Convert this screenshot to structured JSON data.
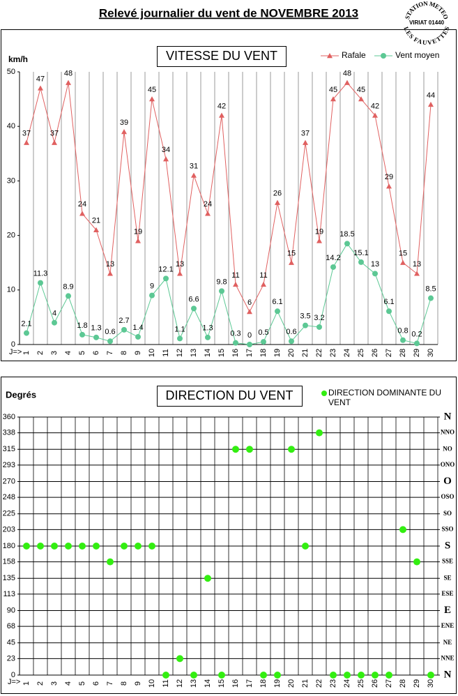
{
  "title": "Relevé journalier du vent de NOVEMBRE 2013",
  "stamp": {
    "top": "STATION METEO",
    "middle": "VIRIAT 01440",
    "bottom": "LES FAUVETTES"
  },
  "chart_data": [
    {
      "type": "line",
      "title": "VITESSE DU VENT",
      "ylabel": "km/h",
      "xlabel": "J=>",
      "categories": [
        "1",
        "2",
        "3",
        "4",
        "5",
        "6",
        "7",
        "8",
        "9",
        "10",
        "11",
        "12",
        "13",
        "14",
        "15",
        "16",
        "17",
        "18",
        "19",
        "20",
        "21",
        "22",
        "23",
        "24",
        "25",
        "26",
        "27",
        "28",
        "29",
        "30"
      ],
      "ylim": [
        0,
        50
      ],
      "yticks": [
        0,
        10,
        20,
        30,
        40,
        50
      ],
      "legend": "top-right",
      "data_labels": true,
      "series": [
        {
          "name": "Rafale",
          "color": "#e06060",
          "marker": "triangle",
          "values": [
            37,
            47,
            37,
            48,
            24,
            21,
            13,
            39,
            19,
            45,
            34,
            13,
            31,
            24,
            42,
            11,
            6,
            11,
            26,
            15,
            37,
            19,
            45,
            48,
            45,
            42,
            29,
            15,
            13,
            44
          ]
        },
        {
          "name": "Vent moyen",
          "color": "#5cc894",
          "marker": "circle",
          "values": [
            2.1,
            11.3,
            4,
            8.9,
            1.8,
            1.3,
            0.6,
            2.7,
            1.4,
            9,
            12.1,
            1.1,
            6.6,
            1.3,
            9.8,
            0.3,
            0,
            0.5,
            6.1,
            0.6,
            3.5,
            3.2,
            14.2,
            18.5,
            15.1,
            13,
            6.1,
            0.8,
            0.2,
            8.5
          ]
        }
      ]
    },
    {
      "type": "scatter",
      "title": "DIRECTION DU VENT",
      "ylabel": "Degrés",
      "xlabel": "J=>",
      "categories": [
        "1",
        "2",
        "3",
        "4",
        "5",
        "6",
        "7",
        "8",
        "9",
        "10",
        "11",
        "12",
        "13",
        "14",
        "15",
        "16",
        "17",
        "18",
        "19",
        "20",
        "21",
        "22",
        "23",
        "24",
        "25",
        "26",
        "27",
        "28",
        "29",
        "30"
      ],
      "ylim": [
        0,
        360
      ],
      "yticks": [
        0,
        23,
        45,
        68,
        90,
        113,
        135,
        158,
        180,
        203,
        225,
        248,
        270,
        293,
        315,
        338,
        360
      ],
      "y2lim": [
        0,
        360
      ],
      "y2ticks": [
        {
          "value": 0,
          "label": "N"
        },
        {
          "value": 23,
          "label": "NNE"
        },
        {
          "value": 45,
          "label": "NE"
        },
        {
          "value": 68,
          "label": "ENE"
        },
        {
          "value": 90,
          "label": "E"
        },
        {
          "value": 113,
          "label": "ESE"
        },
        {
          "value": 135,
          "label": "SE"
        },
        {
          "value": 158,
          "label": "SSE"
        },
        {
          "value": 180,
          "label": "S"
        },
        {
          "value": 203,
          "label": "SSO"
        },
        {
          "value": 225,
          "label": "SO"
        },
        {
          "value": 248,
          "label": "OSO"
        },
        {
          "value": 270,
          "label": "O"
        },
        {
          "value": 293,
          "label": "ONO"
        },
        {
          "value": 315,
          "label": "NO"
        },
        {
          "value": 338,
          "label": "NNO"
        },
        {
          "value": 360,
          "label": "N"
        }
      ],
      "grid": true,
      "legend": "top-right",
      "series": [
        {
          "name": "DIRECTION DOMINANTE DU VENT",
          "color": "#33ee11",
          "marker": "circle",
          "values": [
            180,
            180,
            180,
            180,
            180,
            180,
            158,
            180,
            180,
            180,
            0,
            23,
            0,
            135,
            0,
            315,
            315,
            0,
            0,
            315,
            180,
            338,
            0,
            0,
            0,
            0,
            0,
            203,
            158,
            0
          ]
        }
      ]
    }
  ]
}
